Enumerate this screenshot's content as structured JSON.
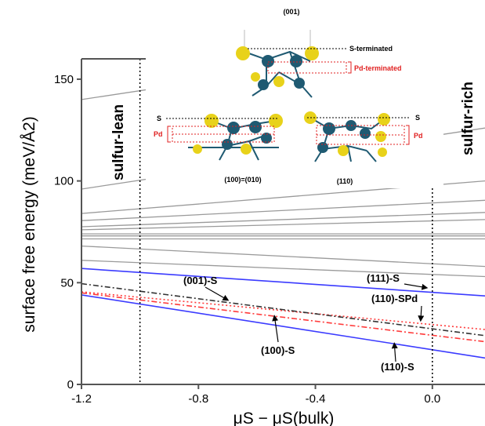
{
  "chart_data": {
    "type": "line",
    "xlabel": "μS − μS(bulk)",
    "ylabel": "surface free energy (meV/Å2)",
    "xlim": [
      -1.2,
      0.18
    ],
    "ylim": [
      0,
      160
    ],
    "x_ticks": [
      -1.2,
      -0.8,
      -0.4,
      0.0
    ],
    "x_tick_labels": [
      "-1.2",
      "-0.8",
      "-0.4",
      "0.0"
    ],
    "y_ticks": [
      0,
      50,
      100,
      150
    ],
    "y_tick_labels": [
      "0",
      "50",
      "100",
      "150"
    ],
    "regime_lines": [
      -1.0,
      0.0
    ],
    "regime_labels": {
      "lean": "sulfur-lean",
      "rich": "sulfur-rich"
    },
    "series": [
      {
        "name": "(111)-S",
        "color": "#3b3bff",
        "style": "solid",
        "x": [
          -1.2,
          0.18
        ],
        "y": [
          57,
          43.5
        ]
      },
      {
        "name": "(110)-SPd",
        "color": "#ff3b3b",
        "style": "dotted",
        "x": [
          -1.2,
          0.18
        ],
        "y": [
          45.5,
          27
        ]
      },
      {
        "name": "(001)-S",
        "color": "#333333",
        "style": "dashdot",
        "x": [
          -1.2,
          0.18
        ],
        "y": [
          49.5,
          24
        ]
      },
      {
        "name": "(100)-S",
        "color": "#ff3b3b",
        "style": "dashdot",
        "x": [
          -1.2,
          0.18
        ],
        "y": [
          45,
          21
        ]
      },
      {
        "name": "(110)-S",
        "color": "#3b3bff",
        "style": "solid",
        "x": [
          -1.2,
          0.18
        ],
        "y": [
          44,
          13
        ]
      },
      {
        "color": "#9a9a9a",
        "style": "solid",
        "x": [
          -1.2,
          0.18
        ],
        "y": [
          140,
          170
        ]
      },
      {
        "color": "#9a9a9a",
        "style": "solid",
        "x": [
          -1.2,
          0.18
        ],
        "y": [
          96,
          126
        ]
      },
      {
        "color": "#9a9a9a",
        "style": "solid",
        "x": [
          -1.2,
          0.18
        ],
        "y": [
          84,
          100
        ]
      },
      {
        "color": "#9a9a9a",
        "style": "solid",
        "x": [
          -1.2,
          0.18
        ],
        "y": [
          80.5,
          90.5
        ]
      },
      {
        "color": "#9a9a9a",
        "style": "solid",
        "x": [
          -1.2,
          0.18
        ],
        "y": [
          77.5,
          84.5
        ]
      },
      {
        "color": "#9a9a9a",
        "style": "solid",
        "x": [
          -1.2,
          0.18
        ],
        "y": [
          76,
          81
        ]
      },
      {
        "color": "#9a9a9a",
        "style": "solid",
        "x": [
          -1.2,
          0.18
        ],
        "y": [
          74,
          74
        ]
      },
      {
        "color": "#9a9a9a",
        "style": "solid",
        "x": [
          -1.2,
          0.18
        ],
        "y": [
          73,
          73
        ]
      },
      {
        "color": "#9a9a9a",
        "style": "solid",
        "x": [
          -1.2,
          0.18
        ],
        "y": [
          71.5,
          71.5
        ]
      },
      {
        "color": "#9a9a9a",
        "style": "solid",
        "x": [
          -1.2,
          0.18
        ],
        "y": [
          68,
          58
        ]
      },
      {
        "color": "#9a9a9a",
        "style": "solid",
        "x": [
          -1.2,
          0.18
        ],
        "y": [
          61,
          53
        ]
      }
    ],
    "annotations": [
      {
        "text": "(001)-S",
        "arrow_to": [
          -0.7,
          41.5
        ]
      },
      {
        "text": "(111)-S",
        "arrow_to": [
          -0.02,
          47.5
        ]
      },
      {
        "text": "(110)-SPd",
        "arrow_to": [
          -0.04,
          31.5
        ]
      },
      {
        "text": "(100)-S",
        "arrow_to": [
          -0.54,
          33.5
        ]
      },
      {
        "text": "(110)-S",
        "arrow_to": [
          -0.13,
          20
        ]
      }
    ],
    "inset": {
      "title": "(001)",
      "top_labels": [
        "S-terminated",
        "Pd-terminated"
      ],
      "left_labels": [
        "S",
        "Pd"
      ],
      "left_caption": "(100)=(010)",
      "right_labels": [
        "S",
        "Pd"
      ],
      "right_caption": "(110)",
      "colors": {
        "sulfur": "#e8d21a",
        "palladium": "#1f5a72",
        "highlight": "#e02020"
      }
    }
  }
}
